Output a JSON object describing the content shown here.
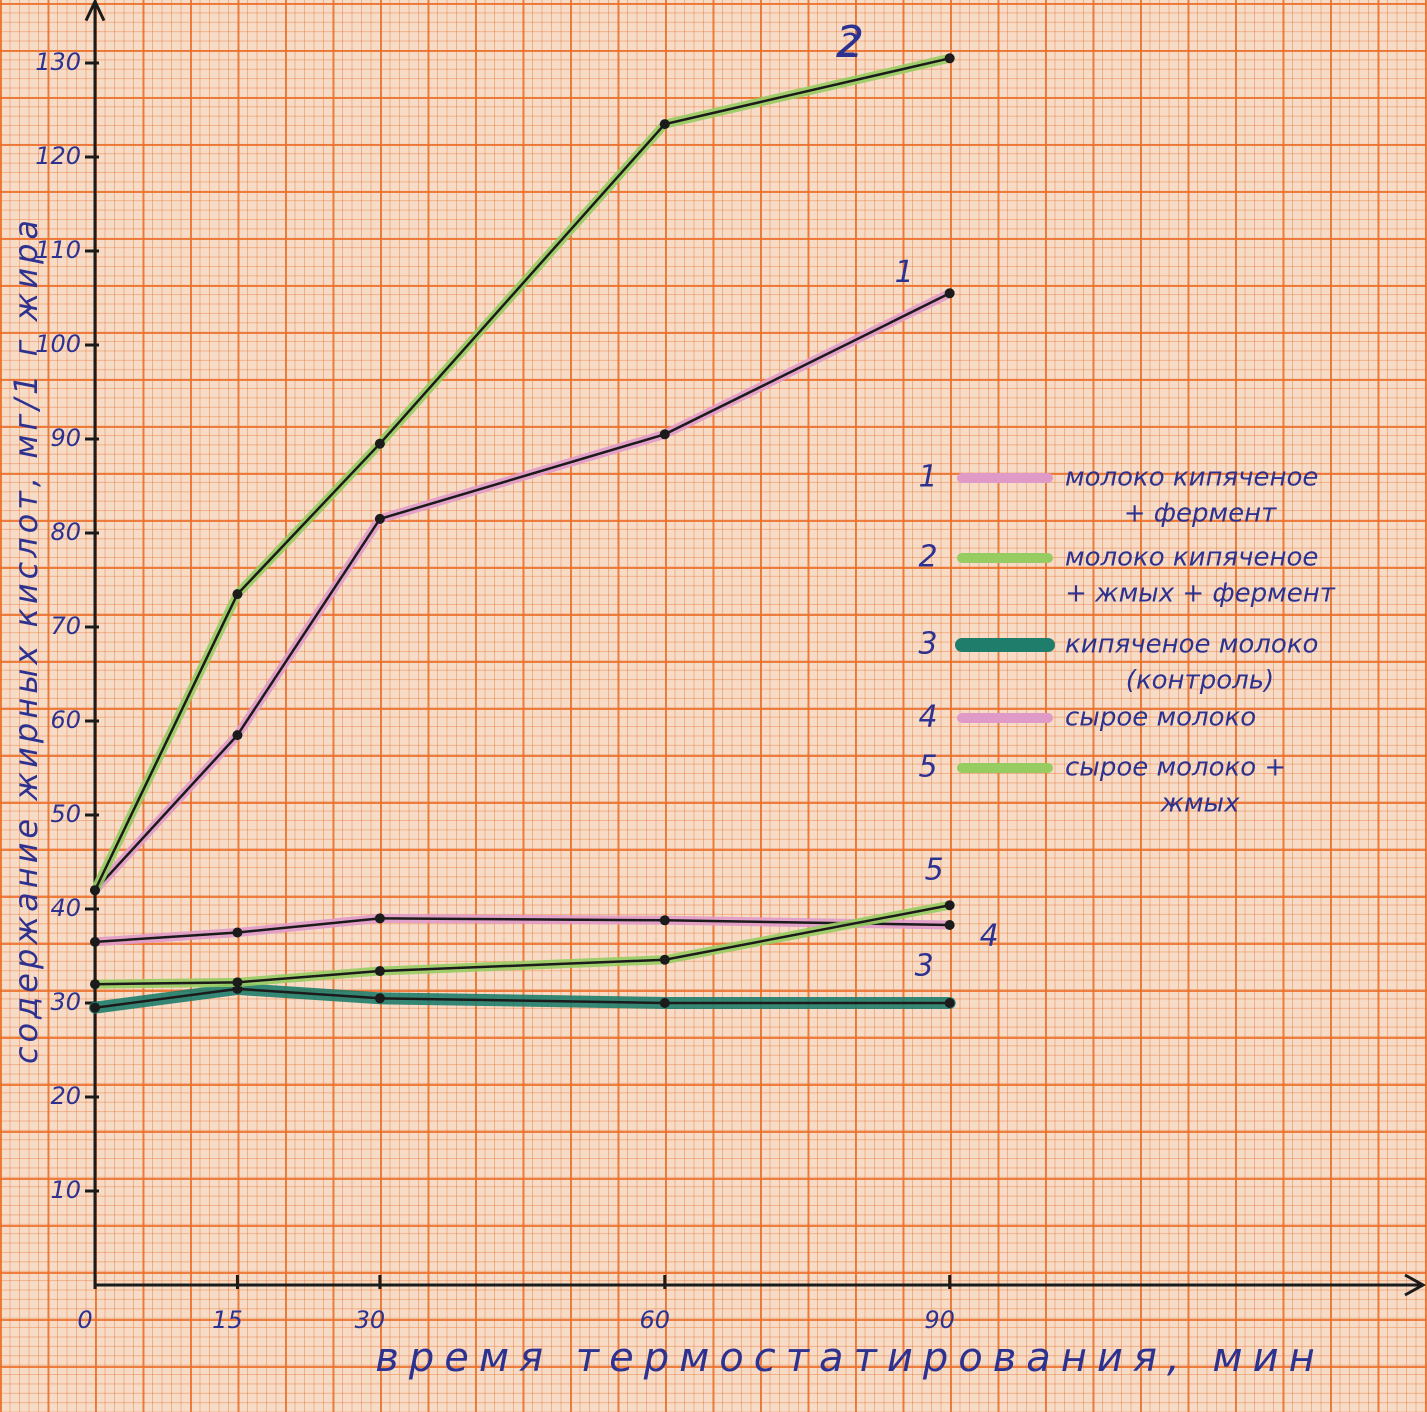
{
  "chart_data": {
    "type": "line",
    "title": "2",
    "x_label": "время термостатирования, мин",
    "y_label": "содержание жирных кислот, мг/1 г жира",
    "x": [
      0,
      15,
      30,
      60,
      90
    ],
    "xlim": [
      0,
      139
    ],
    "xticks": [
      0,
      15,
      30,
      60,
      90
    ],
    "ylim": [
      0,
      136
    ],
    "yticks": [
      10,
      20,
      30,
      40,
      50,
      60,
      70,
      80,
      90,
      100,
      110,
      120,
      130
    ],
    "series": [
      {
        "name": "1",
        "label": [
          "молоко кипяченое",
          "+ фермент"
        ],
        "color": "#e09ac8",
        "values": [
          42,
          58.5,
          81.5,
          90.5,
          105.5
        ]
      },
      {
        "name": "2",
        "label": [
          "молоко кипяченое",
          "+ жмых + фермент"
        ],
        "color": "#97cc62",
        "values": [
          42,
          73.5,
          89.5,
          123.5,
          130.5
        ]
      },
      {
        "name": "3",
        "label": [
          "кипяченое молоко",
          "(контроль)"
        ],
        "color": "#1f7d6c",
        "values": [
          29.5,
          31.5,
          30.5,
          30,
          30
        ]
      },
      {
        "name": "4",
        "label": [
          "сырое молоко"
        ],
        "color": "#e09ac8",
        "values": [
          36.5,
          37.5,
          39,
          38.8,
          38.3
        ]
      },
      {
        "name": "5",
        "label": [
          "сырое молоко +",
          "жмых"
        ],
        "color": "#97cc62",
        "values": [
          32,
          32.2,
          33.4,
          34.6,
          40.4
        ]
      }
    ]
  }
}
